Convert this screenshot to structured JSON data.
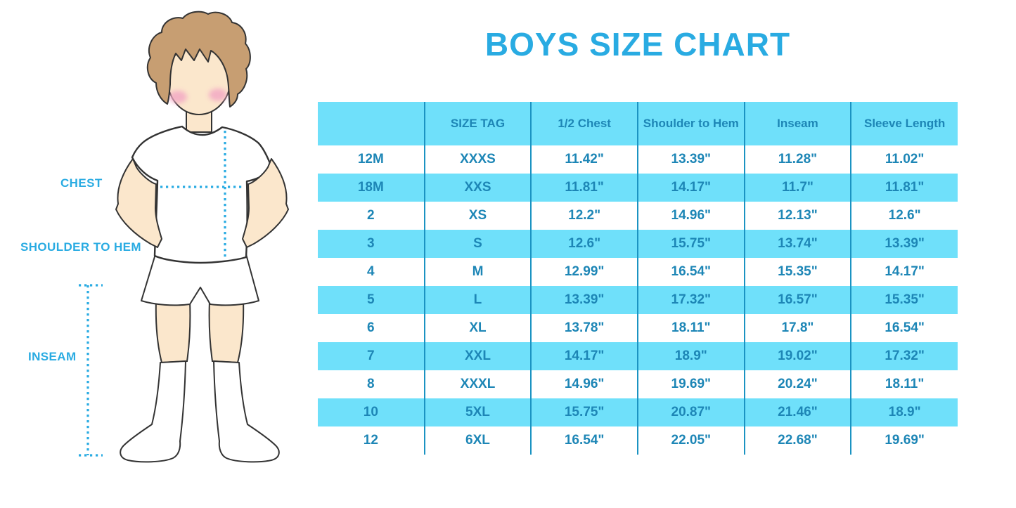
{
  "page": {
    "title": "BOYS SIZE CHART"
  },
  "figure": {
    "chest_label": "CHEST",
    "shoulder_to_hem_label": "SHOULDER TO HEM",
    "inseam_label": "INSEAM"
  },
  "table": {
    "columns": [
      "",
      "SIZE TAG",
      "1/2 Chest",
      "Shoulder to Hem",
      "Inseam",
      "Sleeve Length"
    ],
    "rows": [
      [
        "12M",
        "XXXS",
        "11.42\"",
        "13.39\"",
        "11.28\"",
        "11.02\""
      ],
      [
        "18M",
        "XXS",
        "11.81\"",
        "14.17\"",
        "11.7\"",
        "11.81\""
      ],
      [
        "2",
        "XS",
        "12.2\"",
        "14.96\"",
        "12.13\"",
        "12.6\""
      ],
      [
        "3",
        "S",
        "12.6\"",
        "15.75\"",
        "13.74\"",
        "13.39\""
      ],
      [
        "4",
        "M",
        "12.99\"",
        "16.54\"",
        "15.35\"",
        "14.17\""
      ],
      [
        "5",
        "L",
        "13.39\"",
        "17.32\"",
        "16.57\"",
        "15.35\""
      ],
      [
        "6",
        "XL",
        "13.78\"",
        "18.11\"",
        "17.8\"",
        "16.54\""
      ],
      [
        "7",
        "XXL",
        "14.17\"",
        "18.9\"",
        "19.02\"",
        "17.32\""
      ],
      [
        "8",
        "XXXL",
        "14.96\"",
        "19.69\"",
        "20.24\"",
        "18.11\""
      ],
      [
        "10",
        "5XL",
        "15.75\"",
        "20.87\"",
        "21.46\"",
        "18.9\""
      ],
      [
        "12",
        "6XL",
        "16.54\"",
        "22.05\"",
        "22.68\"",
        "19.69\""
      ]
    ]
  },
  "colors": {
    "accent": "#29ABE2",
    "table-text": "#1D86B6",
    "table-stripe": "#6FE0FA",
    "table-divider": "#1B93C2",
    "skin": "#FBE7CC",
    "hair": "#C79E72",
    "blush": "#F3A9C4",
    "outline": "#333333"
  }
}
